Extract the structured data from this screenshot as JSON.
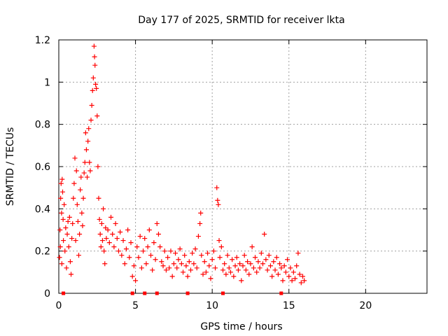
{
  "chart_data": {
    "type": "scatter",
    "title": "Day 177 of 2025, SRMTID for receiver lkta",
    "xlabel": "GPS time / hours",
    "ylabel": "SRMTID / TECUs",
    "xlim": [
      0,
      24
    ],
    "ylim": [
      0,
      1.2
    ],
    "xticks": [
      0,
      5,
      10,
      15,
      20
    ],
    "yticks": [
      0,
      0.2,
      0.4,
      0.6,
      0.8,
      1.0,
      1.2
    ],
    "ytick_labels": [
      "0",
      "0.2",
      "0.4",
      "0.6",
      "0.8",
      "1",
      "1.2"
    ],
    "grid": true,
    "marker": "+",
    "colors": {
      "series": "#ff0000",
      "grid": "#a0a0a0",
      "axis": "#000000"
    },
    "series": [
      {
        "name": "SRMTID",
        "points": [
          [
            0.05,
            0.17
          ],
          [
            0.08,
            0.3
          ],
          [
            0.1,
            0.22
          ],
          [
            0.12,
            0.45
          ],
          [
            0.15,
            0.52
          ],
          [
            0.18,
            0.38
          ],
          [
            0.2,
            0.14
          ],
          [
            0.22,
            0.54
          ],
          [
            0.25,
            0.48
          ],
          [
            0.28,
            0.35
          ],
          [
            0.3,
            0.25
          ],
          [
            0.35,
            0.42
          ],
          [
            0.4,
            0.2
          ],
          [
            0.45,
            0.31
          ],
          [
            0.5,
            0.12
          ],
          [
            0.55,
            0.28
          ],
          [
            0.6,
            0.34
          ],
          [
            0.65,
            0.22
          ],
          [
            0.7,
            0.36
          ],
          [
            0.75,
            0.15
          ],
          [
            0.8,
            0.09
          ],
          [
            0.85,
            0.26
          ],
          [
            0.9,
            0.33
          ],
          [
            0.95,
            0.45
          ],
          [
            1.0,
            0.52
          ],
          [
            1.05,
            0.64
          ],
          [
            1.1,
            0.25
          ],
          [
            1.15,
            0.58
          ],
          [
            1.2,
            0.42
          ],
          [
            1.25,
            0.34
          ],
          [
            1.3,
            0.18
          ],
          [
            1.35,
            0.28
          ],
          [
            1.4,
            0.49
          ],
          [
            1.45,
            0.55
          ],
          [
            1.5,
            0.38
          ],
          [
            1.55,
            0.32
          ],
          [
            1.6,
            0.45
          ],
          [
            1.65,
            0.57
          ],
          [
            1.7,
            0.62
          ],
          [
            1.75,
            0.76
          ],
          [
            1.8,
            0.68
          ],
          [
            1.85,
            0.55
          ],
          [
            1.9,
            0.72
          ],
          [
            1.95,
            0.78
          ],
          [
            2.0,
            0.62
          ],
          [
            2.05,
            0.58
          ],
          [
            2.1,
            0.82
          ],
          [
            2.15,
            0.89
          ],
          [
            2.2,
            0.96
          ],
          [
            2.25,
            1.02
          ],
          [
            2.3,
            1.17
          ],
          [
            2.33,
            1.12
          ],
          [
            2.36,
            1.08
          ],
          [
            2.4,
            0.99
          ],
          [
            2.45,
            0.97
          ],
          [
            2.5,
            0.84
          ],
          [
            2.55,
            0.6
          ],
          [
            2.6,
            0.45
          ],
          [
            2.65,
            0.35
          ],
          [
            2.7,
            0.28
          ],
          [
            2.75,
            0.22
          ],
          [
            2.8,
            0.33
          ],
          [
            2.85,
            0.25
          ],
          [
            2.9,
            0.4
          ],
          [
            2.95,
            0.2
          ],
          [
            3.0,
            0.14
          ],
          [
            3.05,
            0.31
          ],
          [
            3.1,
            0.26
          ],
          [
            3.2,
            0.3
          ],
          [
            3.3,
            0.24
          ],
          [
            3.4,
            0.36
          ],
          [
            3.5,
            0.28
          ],
          [
            3.6,
            0.22
          ],
          [
            3.7,
            0.33
          ],
          [
            3.8,
            0.26
          ],
          [
            3.9,
            0.2
          ],
          [
            4.0,
            0.29
          ],
          [
            4.1,
            0.18
          ],
          [
            4.2,
            0.25
          ],
          [
            4.3,
            0.14
          ],
          [
            4.4,
            0.21
          ],
          [
            4.5,
            0.3
          ],
          [
            4.6,
            0.17
          ],
          [
            4.7,
            0.24
          ],
          [
            4.8,
            0.08
          ],
          [
            4.9,
            0.13
          ],
          [
            5.0,
            0.06
          ],
          [
            5.1,
            0.22
          ],
          [
            5.2,
            0.17
          ],
          [
            5.3,
            0.27
          ],
          [
            5.4,
            0.12
          ],
          [
            5.5,
            0.2
          ],
          [
            5.6,
            0.26
          ],
          [
            5.7,
            0.14
          ],
          [
            5.8,
            0.22
          ],
          [
            5.9,
            0.3
          ],
          [
            6.0,
            0.18
          ],
          [
            6.1,
            0.11
          ],
          [
            6.2,
            0.24
          ],
          [
            6.3,
            0.16
          ],
          [
            6.4,
            0.33
          ],
          [
            6.5,
            0.28
          ],
          [
            6.6,
            0.22
          ],
          [
            6.7,
            0.15
          ],
          [
            6.8,
            0.13
          ],
          [
            6.9,
            0.2
          ],
          [
            7.0,
            0.11
          ],
          [
            7.1,
            0.17
          ],
          [
            7.2,
            0.12
          ],
          [
            7.3,
            0.2
          ],
          [
            7.4,
            0.08
          ],
          [
            7.5,
            0.14
          ],
          [
            7.6,
            0.19
          ],
          [
            7.7,
            0.12
          ],
          [
            7.8,
            0.16
          ],
          [
            7.9,
            0.21
          ],
          [
            8.0,
            0.14
          ],
          [
            8.1,
            0.1
          ],
          [
            8.2,
            0.18
          ],
          [
            8.3,
            0.13
          ],
          [
            8.4,
            0.08
          ],
          [
            8.5,
            0.15
          ],
          [
            8.6,
            0.11
          ],
          [
            8.7,
            0.19
          ],
          [
            8.8,
            0.14
          ],
          [
            8.9,
            0.21
          ],
          [
            9.0,
            0.12
          ],
          [
            9.1,
            0.27
          ],
          [
            9.2,
            0.33
          ],
          [
            9.25,
            0.38
          ],
          [
            9.3,
            0.18
          ],
          [
            9.4,
            0.09
          ],
          [
            9.5,
            0.15
          ],
          [
            9.6,
            0.1
          ],
          [
            9.7,
            0.19
          ],
          [
            9.8,
            0.13
          ],
          [
            9.9,
            0.07
          ],
          [
            10.0,
            0.16
          ],
          [
            10.1,
            0.2
          ],
          [
            10.2,
            0.12
          ],
          [
            10.3,
            0.5
          ],
          [
            10.35,
            0.44
          ],
          [
            10.4,
            0.42
          ],
          [
            10.45,
            0.25
          ],
          [
            10.5,
            0.17
          ],
          [
            10.6,
            0.22
          ],
          [
            10.7,
            0.11
          ],
          [
            10.8,
            0.14
          ],
          [
            10.9,
            0.09
          ],
          [
            11.0,
            0.18
          ],
          [
            11.1,
            0.12
          ],
          [
            11.2,
            0.1
          ],
          [
            11.3,
            0.16
          ],
          [
            11.4,
            0.08
          ],
          [
            11.5,
            0.13
          ],
          [
            11.6,
            0.17
          ],
          [
            11.7,
            0.11
          ],
          [
            11.8,
            0.14
          ],
          [
            11.9,
            0.06
          ],
          [
            12.0,
            0.13
          ],
          [
            12.1,
            0.18
          ],
          [
            12.2,
            0.11
          ],
          [
            12.3,
            0.15
          ],
          [
            12.4,
            0.09
          ],
          [
            12.5,
            0.14
          ],
          [
            12.6,
            0.22
          ],
          [
            12.7,
            0.12
          ],
          [
            12.8,
            0.17
          ],
          [
            12.9,
            0.1
          ],
          [
            13.0,
            0.15
          ],
          [
            13.1,
            0.12
          ],
          [
            13.2,
            0.19
          ],
          [
            13.3,
            0.14
          ],
          [
            13.4,
            0.28
          ],
          [
            13.5,
            0.16
          ],
          [
            13.6,
            0.11
          ],
          [
            13.7,
            0.18
          ],
          [
            13.8,
            0.13
          ],
          [
            13.9,
            0.08
          ],
          [
            14.0,
            0.15
          ],
          [
            14.1,
            0.11
          ],
          [
            14.2,
            0.17
          ],
          [
            14.3,
            0.09
          ],
          [
            14.4,
            0.14
          ],
          [
            14.5,
            0.12
          ],
          [
            14.6,
            0.06
          ],
          [
            14.7,
            0.13
          ],
          [
            14.8,
            0.1
          ],
          [
            14.9,
            0.16
          ],
          [
            15.0,
            0.08
          ],
          [
            15.1,
            0.12
          ],
          [
            15.2,
            0.06
          ],
          [
            15.3,
            0.1
          ],
          [
            15.4,
            0.07
          ],
          [
            15.5,
            0.13
          ],
          [
            15.6,
            0.19
          ],
          [
            15.7,
            0.09
          ],
          [
            15.8,
            0.05
          ],
          [
            15.9,
            0.08
          ],
          [
            16.0,
            0.06
          ]
        ]
      }
    ],
    "baseline_markers_x": [
      0.3,
      4.8,
      5.6,
      6.4,
      8.4,
      10.7,
      14.5
    ]
  }
}
